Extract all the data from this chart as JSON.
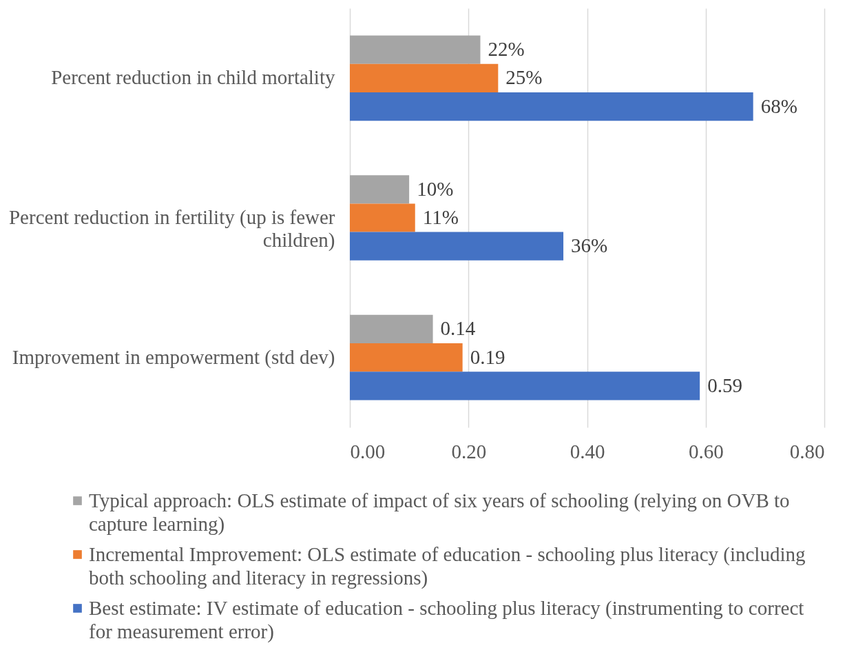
{
  "chart_data": {
    "type": "bar",
    "orientation": "horizontal",
    "categories": [
      "Percent reduction in child mortality",
      "Percent reduction in fertility (up is fewer children)",
      "Improvement in empowerment (std dev)"
    ],
    "series": [
      {
        "name": "Typical approach: OLS estimate of impact of six years of schooling (relying on OVB to capture learning)",
        "color": "#a5a5a5",
        "values": [
          0.22,
          0.1,
          0.14
        ],
        "value_labels": [
          "22%",
          "10%",
          "0.14"
        ]
      },
      {
        "name": "Incremental Improvement: OLS estimate of education - schooling plus literacy (including both schooling and literacy in regressions)",
        "color": "#ed7d31",
        "values": [
          0.25,
          0.11,
          0.19
        ],
        "value_labels": [
          "25%",
          "11%",
          "0.19"
        ]
      },
      {
        "name": "Best estimate: IV estimate of education - schooling plus literacy (instrumenting to correct for measurement error)",
        "color": "#4472c4",
        "values": [
          0.68,
          0.36,
          0.59
        ],
        "value_labels": [
          "68%",
          "36%",
          "0.59"
        ]
      }
    ],
    "xlim": [
      0,
      0.8
    ],
    "xticks": [
      {
        "value": 0,
        "label": "0.00"
      },
      {
        "value": 0.2,
        "label": "0.20"
      },
      {
        "value": 0.4,
        "label": "0.40"
      },
      {
        "value": 0.6,
        "label": "0.60"
      },
      {
        "value": 0.8,
        "label": "0.80"
      }
    ],
    "grid": "x",
    "legend": "bottom"
  }
}
